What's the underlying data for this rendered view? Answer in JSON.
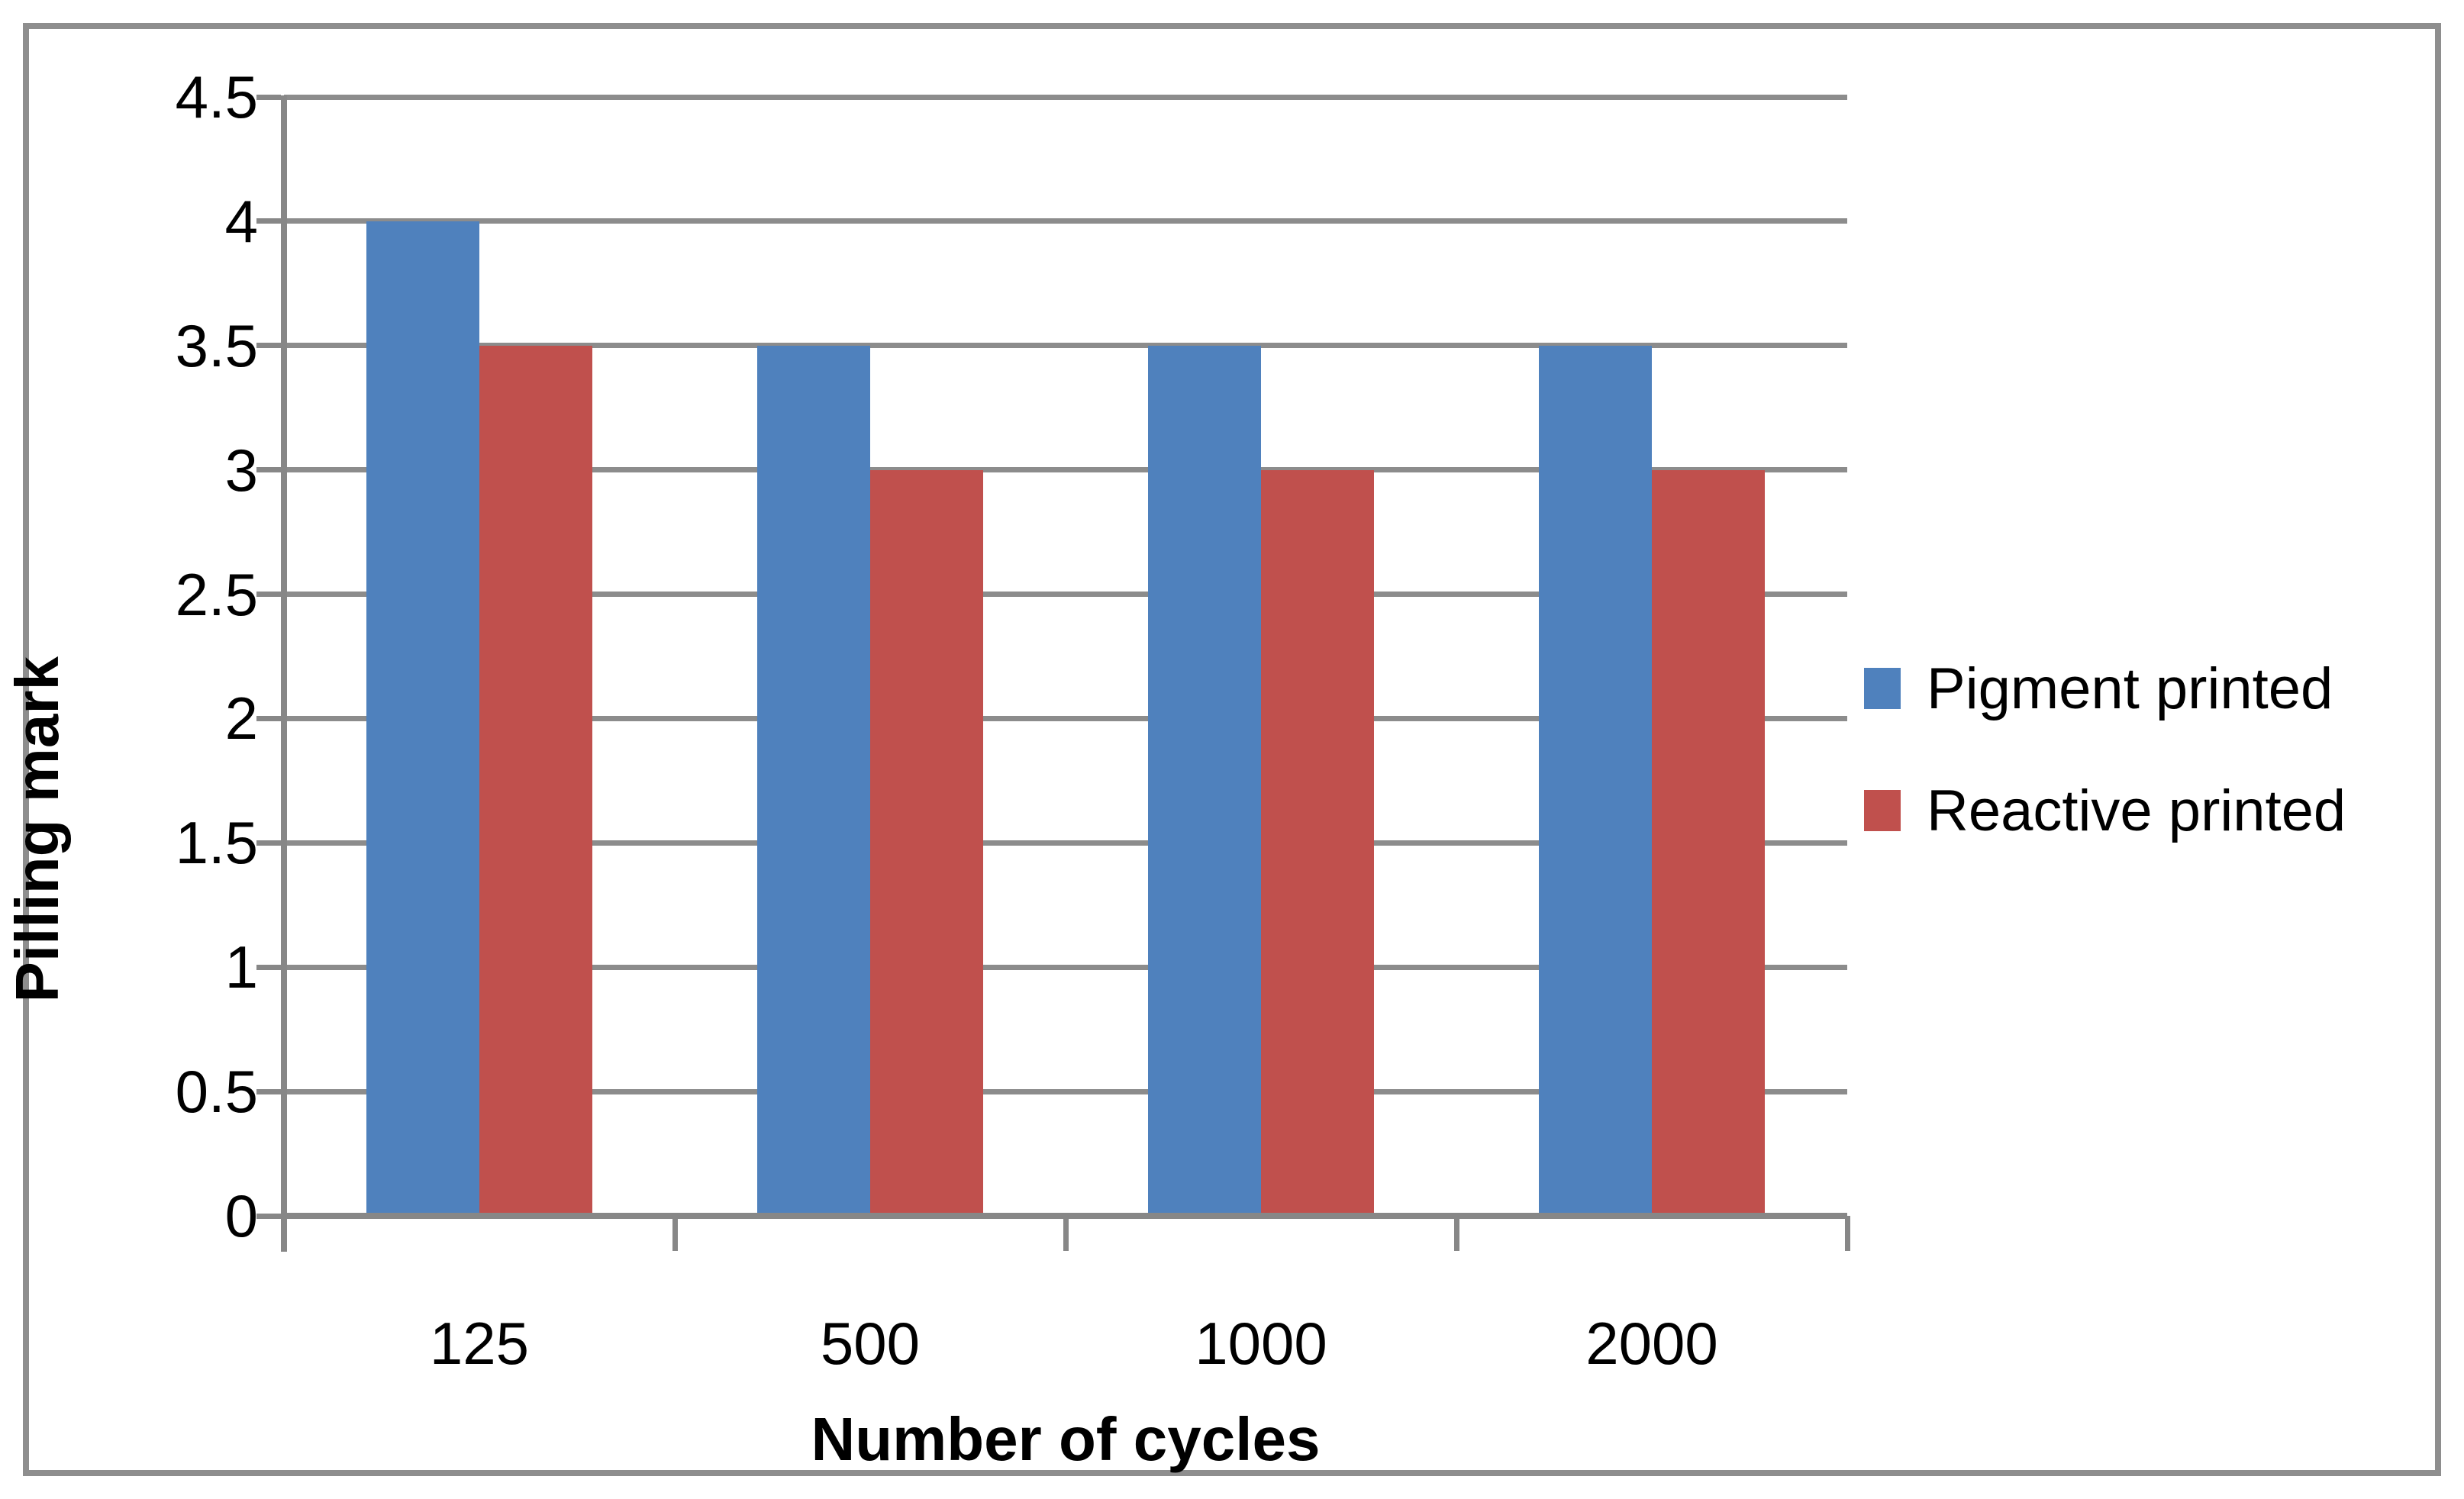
{
  "chart_data": {
    "type": "bar",
    "title": "",
    "categories": [
      "125",
      "500",
      "1000",
      "2000"
    ],
    "series": [
      {
        "name": "Pigment printed",
        "color": "#4F81BD",
        "values": [
          4,
          3.5,
          3.5,
          3.5
        ]
      },
      {
        "name": "Reactive printed",
        "color": "#C0504D",
        "values": [
          3.5,
          3,
          3,
          3
        ]
      }
    ],
    "xlabel": "Number of cycles",
    "ylabel": "Pilling mark",
    "ylim": [
      0,
      4.5
    ],
    "ytick_step": 0.5,
    "yticks": [
      "0",
      "0.5",
      "1",
      "1.5",
      "2",
      "2.5",
      "3",
      "3.5",
      "4",
      "4.5"
    ],
    "grid": "horizontal-major",
    "legend_position": "right"
  },
  "colors": {
    "gridline": "#8C8C8C",
    "axis": "#878787",
    "frame_border": "#8E8E8E",
    "background": "#FFFFFF",
    "text": "#000000"
  }
}
